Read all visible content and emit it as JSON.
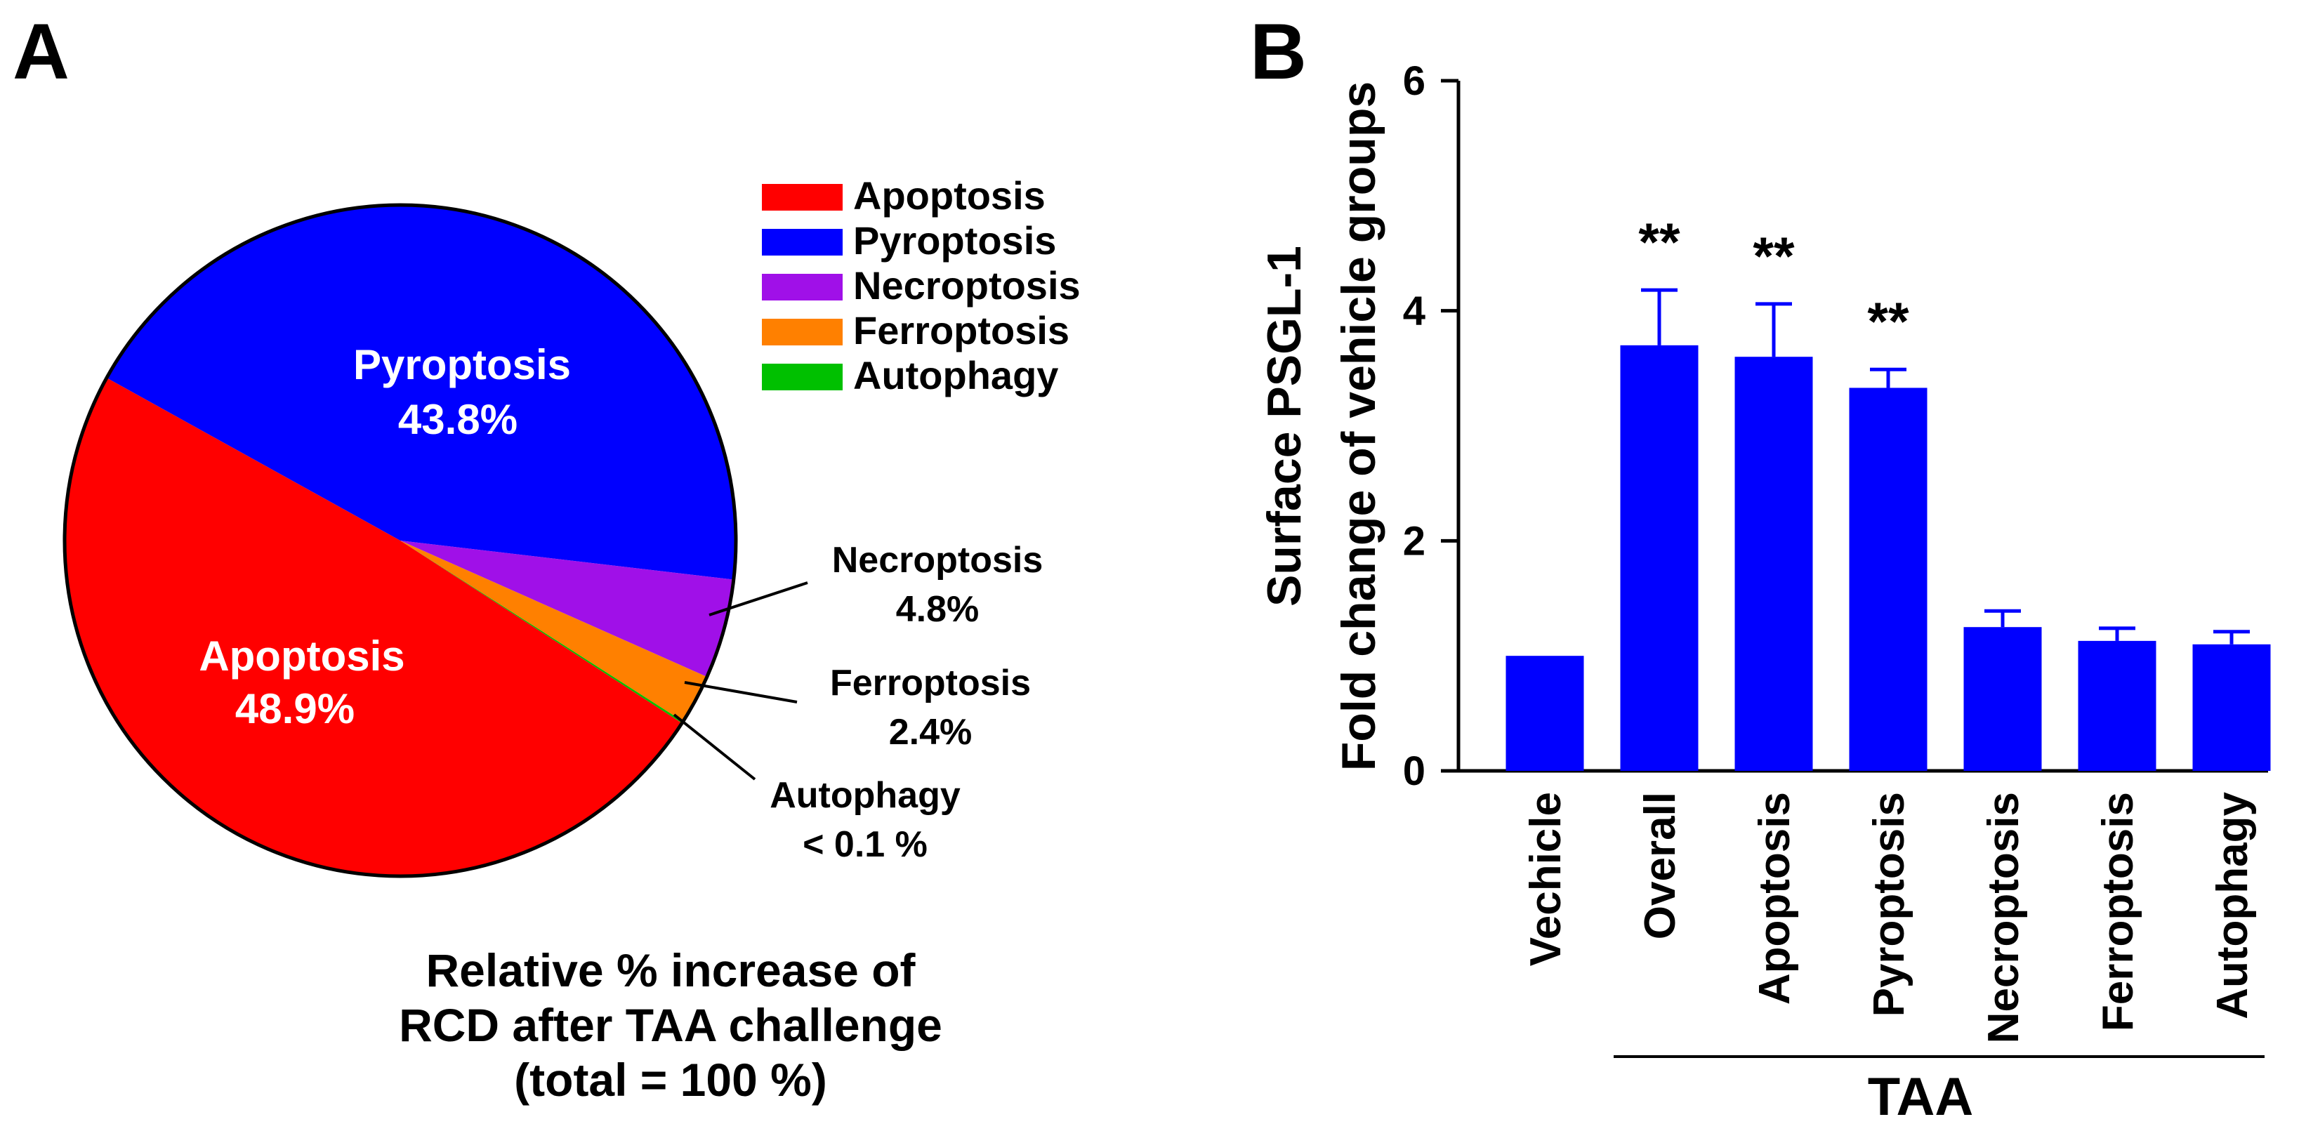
{
  "chart_data": [
    {
      "panel_letter": "A",
      "type": "pie",
      "title": "Relative % increase of\nRCD after TAA challenge\n(total = 100 %)",
      "slices": [
        {
          "name": "Apoptosis",
          "value": 48.9,
          "label": "48.9%",
          "color": "#ff0000"
        },
        {
          "name": "Pyroptosis",
          "value": 43.8,
          "label": "43.8%",
          "color": "#0000ff"
        },
        {
          "name": "Necroptosis",
          "value": 4.8,
          "label": "4.8%",
          "color": "#a010e8"
        },
        {
          "name": "Ferroptosis",
          "value": 2.4,
          "label": "2.4%",
          "color": "#ff8000"
        },
        {
          "name": "Autophagy",
          "value": 0.1,
          "label": "< 0.1 %",
          "color": "#00c000"
        }
      ],
      "legend": [
        "Apoptosis",
        "Pyroptosis",
        "Necroptosis",
        "Ferroptosis",
        "Autophagy"
      ]
    },
    {
      "panel_letter": "B",
      "type": "bar",
      "ylabel_line1": "Surface PSGL-1",
      "ylabel_line2": "Fold change of vehicle groups",
      "ylim": [
        0,
        6
      ],
      "yticks": [
        "0",
        "2",
        "4",
        "6"
      ],
      "categories": [
        "Vechicle",
        "Overall",
        "Apoptosis",
        "Pyroptosis",
        "Necroptosis",
        "Ferroptosis",
        "Autophagy"
      ],
      "values": [
        1.0,
        3.7,
        3.6,
        3.33,
        1.25,
        1.13,
        1.1
      ],
      "errors": [
        0,
        0.48,
        0.46,
        0.16,
        0.14,
        0.11,
        0.11
      ],
      "significance": [
        "",
        "**",
        "**",
        "**",
        "",
        "",
        ""
      ],
      "group_label": "TAA",
      "bar_color": "#0000ff"
    }
  ]
}
